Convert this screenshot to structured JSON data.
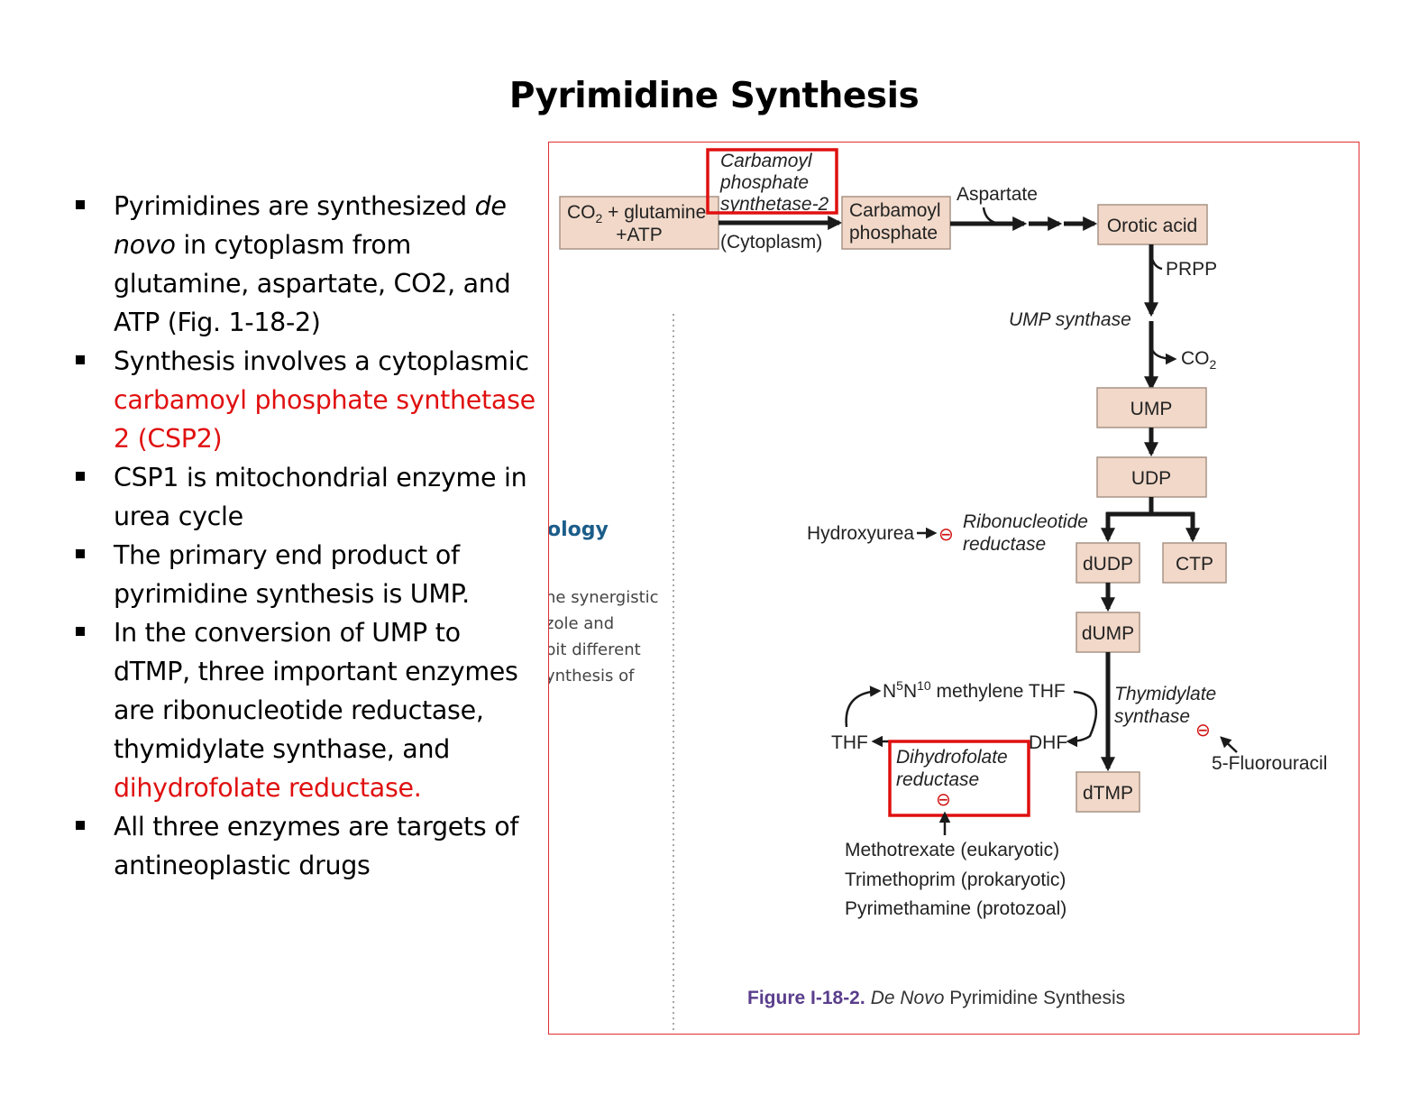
{
  "slide": {
    "title": "Pyrimidine Synthesis",
    "bullets": [
      {
        "a": "Pyrimidines are synthesized ",
        "b": "de novo",
        "c": " in cytoplasm from glutamine, aspartate, CO2, and ATP  (Fig. 1-18-2)"
      },
      {
        "a": "Synthesis involves a cytoplasmic ",
        "red": "carbamoyl phosphate synthetase 2 (CSP2)"
      },
      {
        "a": "CSP1 is mitochondrial enzyme in urea cycle"
      },
      {
        "a": "The primary end product of pyrimidine synthesis is UMP."
      },
      {
        "a": "In the conversion of UMP to dTMP, three important enzymes are ribonucleotide reductase, thymidylate synthase, and ",
        "red": "dihydrofolate reductase."
      },
      {
        "a": "All three enzymes are targets of antineoplastic drugs"
      }
    ]
  },
  "figure": {
    "co2_glutamine": "CO",
    "co2_sub": "2",
    "co2_rest": " + glutamine",
    "atp": "+ATP",
    "cps2_line1": "Carbamoyl",
    "cps2_line2": "phosphate",
    "cps2_line3": "synthetase-2",
    "cytoplasm": "(Cytoplasm)",
    "carbamoyl_line1": "Carbamoyl",
    "carbamoyl_line2": "phosphate",
    "aspartate": "Aspartate",
    "orotic": "Orotic acid",
    "prpp": "PRPP",
    "ump_synthase": "UMP synthase",
    "co2_out": "CO",
    "co2_out_sub": "2",
    "ump": "UMP",
    "udp": "UDP",
    "hydroxyurea": "Hydroxyurea",
    "rr_line1": "Ribonucleotide",
    "rr_line2": "reductase",
    "dudp": "dUDP",
    "ctp": "CTP",
    "dump": "dUMP",
    "methylene_n5": "N",
    "methylene_sup5": "5",
    "methylene_n10": "N",
    "methylene_sup10": "10",
    "methylene_rest": " methylene THF",
    "ts_line1": "Thymidylate",
    "ts_line2": "synthase",
    "thf": "THF",
    "dhf": "DHF",
    "dhfr_line1": "Dihydrofolate",
    "dhfr_line2": "reductase",
    "fluorouracil": "5-Fluorouracil",
    "dtmp": "dTMP",
    "drug1": "Methotrexate (eukaryotic)",
    "drug2": "Trimethoprim (prokaryotic)",
    "drug3": "Pyrimethamine (protozoal)",
    "inhibit_symbol": "⊖",
    "bg_heading": "ology",
    "bg_line1": "he synergistic",
    "bg_line2": "zole and",
    "bg_line3": "bit different",
    "bg_line4": "ynthesis of",
    "caption_label": "Figure I-18-2.",
    "caption_italic": "De Novo",
    "caption_rest": " Pyrimidine Synthesis"
  }
}
